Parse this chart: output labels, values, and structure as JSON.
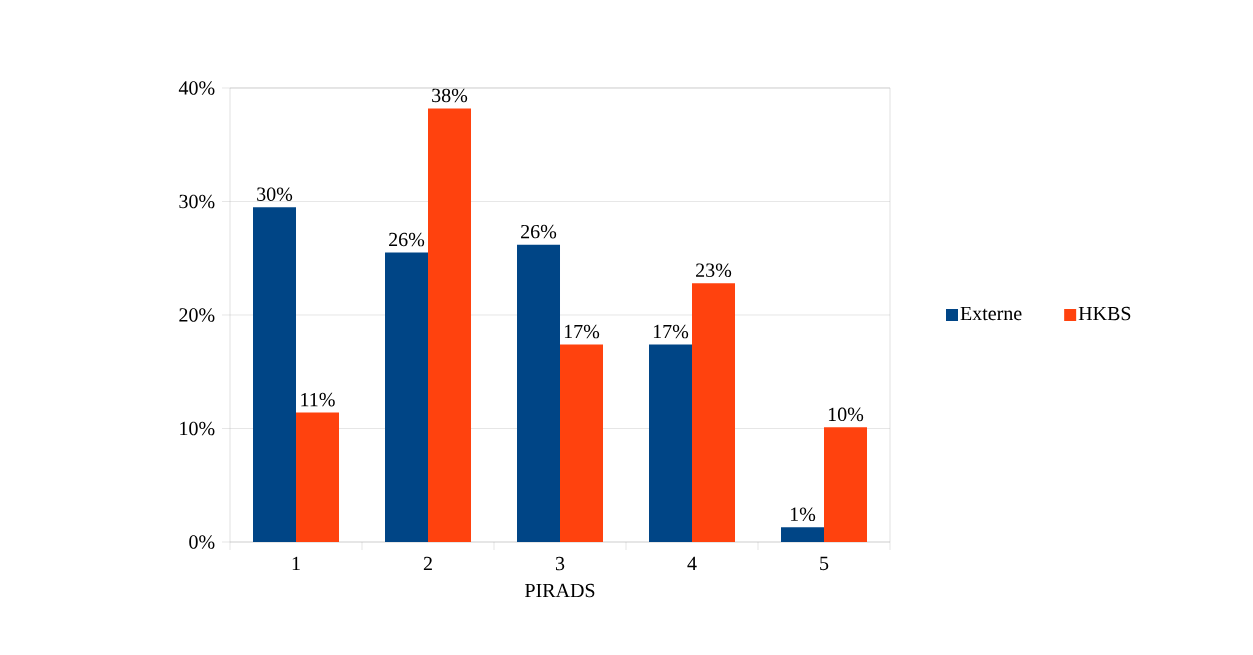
{
  "chart_data": {
    "type": "bar",
    "xlabel": "PIRADS",
    "categories": [
      "1",
      "2",
      "3",
      "4",
      "5"
    ],
    "series": [
      {
        "name": "Externe",
        "color": "#004586",
        "values": [
          29.5,
          25.5,
          26.2,
          17.4,
          1.3
        ],
        "value_labels": [
          "30%",
          "26%",
          "26%",
          "17%",
          "1%"
        ]
      },
      {
        "name": "HKBS",
        "color": "#ff420e",
        "values": [
          11.4,
          38.2,
          17.4,
          22.8,
          10.1
        ],
        "value_labels": [
          "11%",
          "38%",
          "17%",
          "23%",
          "10%"
        ]
      }
    ],
    "ylim": [
      0,
      40
    ],
    "yticks": [
      {
        "value": 0,
        "label": "0%"
      },
      {
        "value": 10,
        "label": "10%"
      },
      {
        "value": 20,
        "label": "20%"
      },
      {
        "value": 30,
        "label": "30%"
      },
      {
        "value": 40,
        "label": "40%"
      }
    ],
    "grid": "y",
    "legend": "right"
  }
}
